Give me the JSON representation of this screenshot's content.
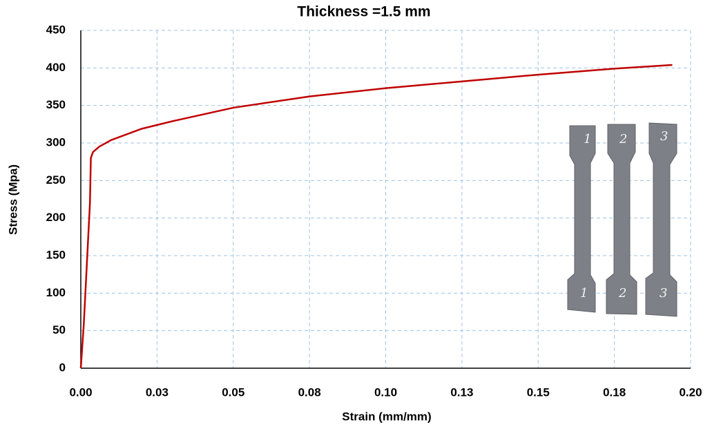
{
  "chart_data": {
    "type": "line",
    "title": "Thickness =1.5 mm",
    "x_label": "Strain (mm/mm)",
    "y_label": "Stress (Mpa)",
    "xlim": [
      0,
      0.2
    ],
    "ylim": [
      0,
      450
    ],
    "xticks": [
      {
        "value": 0,
        "label": "0.00"
      },
      {
        "value": 0.025,
        "label": "0.03"
      },
      0.05,
      {
        "value": 0.075,
        "label": "0.08"
      },
      {
        "value": 0.1,
        "label": "0.10"
      },
      {
        "value": 0.125,
        "label": "0.13"
      },
      0.15,
      {
        "value": 0.175,
        "label": "0.18"
      },
      {
        "value": 0.2,
        "label": "0.20"
      }
    ],
    "yticks": [
      0,
      50,
      100,
      150,
      200,
      250,
      300,
      350,
      400,
      450
    ],
    "grid": true,
    "specimen_labels": [
      "1",
      "2",
      "3"
    ],
    "series": [
      {
        "color": "#c00000",
        "x": [
          0,
          0.001,
          0.002,
          0.003,
          0.0033,
          0.004,
          0.006,
          0.01,
          0.02,
          0.03,
          0.05,
          0.075,
          0.1,
          0.125,
          0.15,
          0.175,
          0.194
        ],
        "values": [
          0,
          60,
          140,
          220,
          280,
          288,
          295,
          304,
          319,
          329,
          347,
          362,
          373,
          382,
          391,
          399,
          404
        ]
      }
    ]
  }
}
